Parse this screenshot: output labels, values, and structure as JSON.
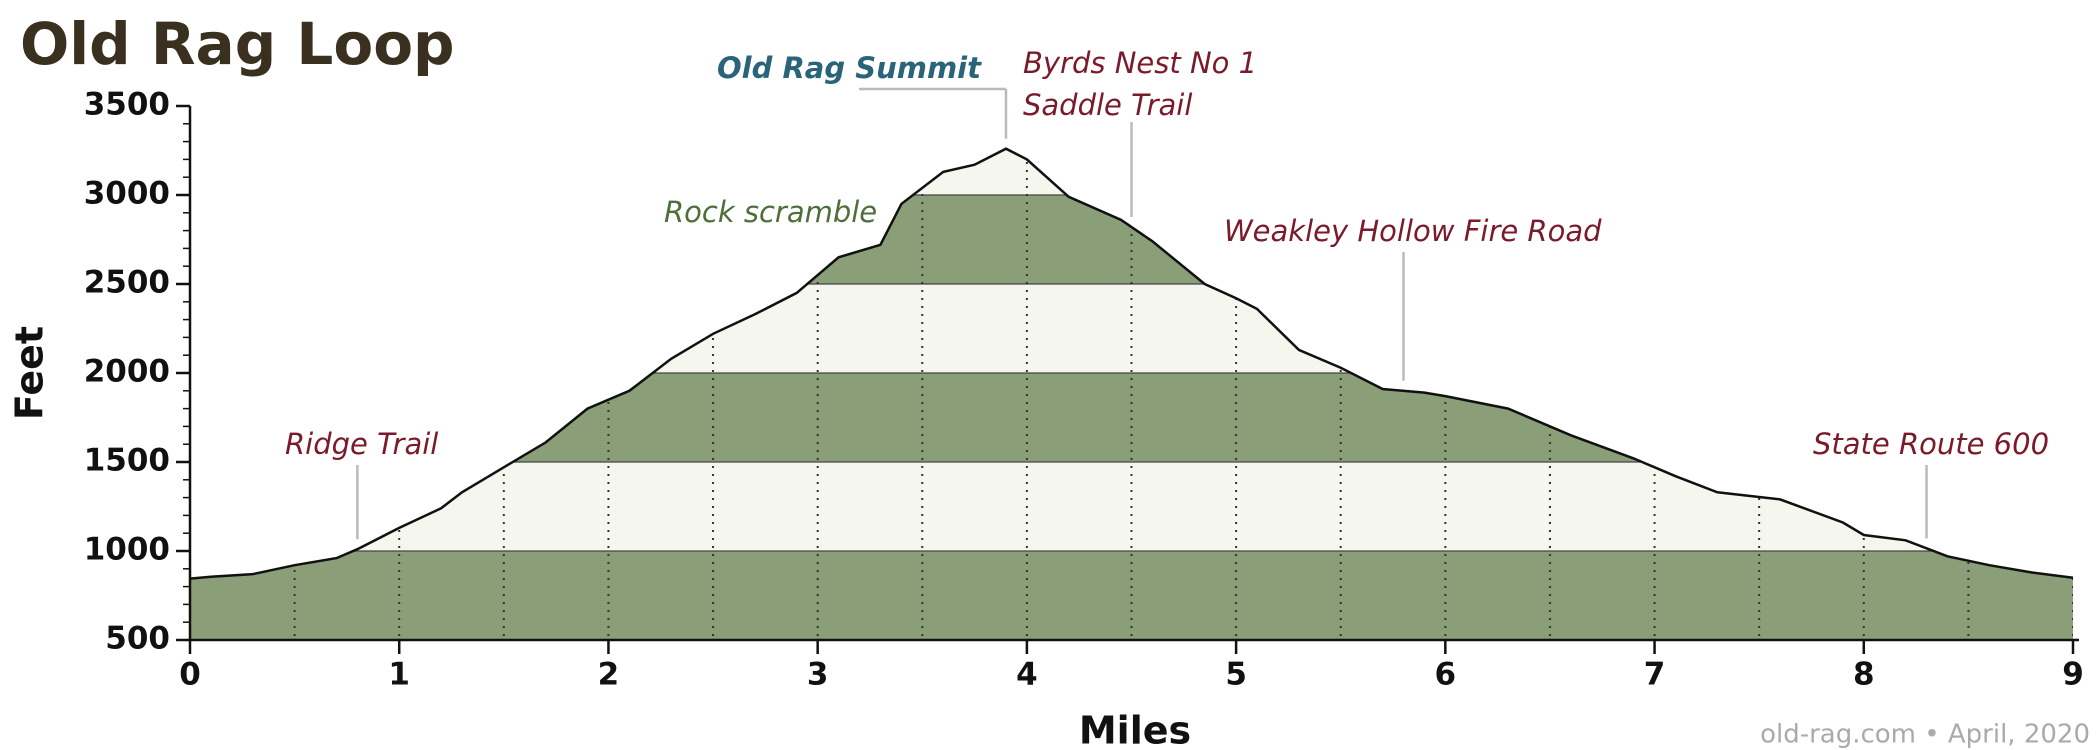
{
  "chart_data": {
    "type": "area",
    "title": "Old Rag Loop",
    "xlabel": "Miles",
    "ylabel": "Feet",
    "footer": "old-rag.com • April, 2020",
    "x": [
      0,
      0.1,
      0.3,
      0.5,
      0.7,
      0.8,
      1.0,
      1.2,
      1.3,
      1.5,
      1.7,
      1.9,
      2.1,
      2.3,
      2.5,
      2.7,
      2.9,
      3.1,
      3.3,
      3.4,
      3.6,
      3.75,
      3.9,
      4.0,
      4.2,
      4.45,
      4.6,
      4.85,
      5.0,
      5.1,
      5.3,
      5.5,
      5.7,
      5.9,
      6.0,
      6.3,
      6.6,
      6.9,
      7.1,
      7.3,
      7.6,
      7.9,
      8.0,
      8.2,
      8.4,
      8.6,
      8.8,
      9.0
    ],
    "values": [
      845,
      855,
      870,
      920,
      960,
      1010,
      1130,
      1240,
      1330,
      1470,
      1610,
      1800,
      1900,
      2080,
      2220,
      2330,
      2450,
      2650,
      2720,
      2950,
      3130,
      3170,
      3260,
      3200,
      2990,
      2860,
      2740,
      2500,
      2420,
      2360,
      2130,
      2030,
      1910,
      1890,
      1870,
      1800,
      1650,
      1520,
      1420,
      1330,
      1290,
      1160,
      1090,
      1060,
      970,
      920,
      880,
      850
    ],
    "xlim": [
      0,
      9
    ],
    "ylim": [
      500,
      3500
    ],
    "xticks": [
      0,
      1,
      2,
      3,
      4,
      5,
      6,
      7,
      8,
      9
    ],
    "yticks": [
      500,
      1000,
      1500,
      2000,
      2500,
      3000,
      3500
    ],
    "xgridlines": [
      0.5,
      1,
      1.5,
      2,
      2.5,
      3,
      3.5,
      4,
      4.5,
      5,
      5.5,
      6,
      6.5,
      7,
      7.5,
      8,
      8.5,
      9
    ],
    "yminorticks": [
      600,
      700,
      800,
      900,
      1100,
      1200,
      1300,
      1400,
      1600,
      1700,
      1800,
      1900,
      2100,
      2200,
      2300,
      2400,
      2600,
      2700,
      2800,
      2900,
      3100,
      3200,
      3300,
      3400
    ],
    "band_colors": [
      "#8a9e78",
      "#f5f6ee"
    ],
    "line_color": "#111111",
    "annotations": [
      {
        "text": [
          "Old Rag Summit"
        ],
        "x": 3.9,
        "color": "#2a6478"
      },
      {
        "text": [
          "Byrds Nest No 1",
          "Saddle Trail"
        ],
        "x": 4.5,
        "color": "#7a1a2a"
      },
      {
        "text": [
          "Rock scramble"
        ],
        "color": "#4e6e3a"
      },
      {
        "text": [
          "Weakley Hollow Fire Road"
        ],
        "x": 5.8,
        "color": "#7a1a2a"
      },
      {
        "text": [
          "Ridge Trail"
        ],
        "x": 0.8,
        "color": "#7a1a2a"
      },
      {
        "text": [
          "State Route 600"
        ],
        "x": 8.3,
        "color": "#7a1a2a"
      }
    ]
  }
}
